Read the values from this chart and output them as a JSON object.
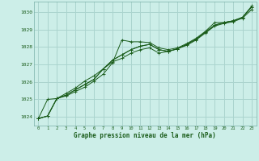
{
  "title": "Graphe pression niveau de la mer (hPa)",
  "background_color": "#cceee8",
  "grid_color": "#aad4ce",
  "line_color": "#1a5c1a",
  "marker_color": "#1a5c1a",
  "xlim": [
    -0.5,
    23.5
  ],
  "ylim": [
    1023.5,
    1030.6
  ],
  "yticks": [
    1024,
    1025,
    1026,
    1027,
    1028,
    1029,
    1030
  ],
  "xticks": [
    0,
    1,
    2,
    3,
    4,
    5,
    6,
    7,
    8,
    9,
    10,
    11,
    12,
    13,
    14,
    15,
    16,
    17,
    18,
    19,
    20,
    21,
    22,
    23
  ],
  "series": [
    {
      "x": [
        0,
        1,
        2,
        3,
        4,
        5,
        6,
        7,
        8,
        9,
        10,
        11,
        12,
        13,
        14,
        15,
        16,
        17,
        18,
        19,
        20,
        21,
        22,
        23
      ],
      "y": [
        1023.9,
        1025.0,
        1025.05,
        1025.2,
        1025.45,
        1025.7,
        1026.05,
        1026.45,
        1027.1,
        1028.4,
        1028.3,
        1028.3,
        1028.25,
        1027.95,
        1027.85,
        1027.95,
        1028.2,
        1028.5,
        1028.9,
        1029.4,
        1029.4,
        1029.5,
        1029.7,
        1030.35
      ]
    },
    {
      "x": [
        0,
        1,
        2,
        3,
        4,
        5,
        6,
        7,
        8,
        9,
        10,
        11,
        12,
        13,
        14,
        15,
        16,
        17,
        18,
        19,
        20,
        21,
        22,
        23
      ],
      "y": [
        1023.9,
        1024.05,
        1025.05,
        1025.25,
        1025.55,
        1025.85,
        1026.15,
        1026.75,
        1027.25,
        1027.55,
        1027.85,
        1028.05,
        1028.15,
        1027.85,
        1027.75,
        1027.9,
        1028.15,
        1028.45,
        1028.85,
        1029.25,
        1029.4,
        1029.5,
        1029.7,
        1030.3
      ]
    },
    {
      "x": [
        0,
        1,
        2,
        3,
        4,
        5,
        6,
        7,
        8,
        9,
        10,
        11,
        12,
        13,
        14,
        15,
        16,
        17,
        18,
        19,
        20,
        21,
        22,
        23
      ],
      "y": [
        1023.9,
        1024.05,
        1025.05,
        1025.25,
        1025.55,
        1025.85,
        1026.15,
        1026.75,
        1027.25,
        1027.55,
        1027.85,
        1028.05,
        1028.15,
        1027.85,
        1027.75,
        1027.9,
        1028.15,
        1028.45,
        1028.85,
        1029.25,
        1029.4,
        1029.5,
        1029.7,
        1030.3
      ]
    },
    {
      "x": [
        0,
        1,
        2,
        3,
        4,
        5,
        6,
        7,
        8,
        9,
        10,
        11,
        12,
        13,
        14,
        15,
        16,
        17,
        18,
        19,
        20,
        21,
        22,
        23
      ],
      "y": [
        1023.9,
        1024.05,
        1025.05,
        1025.35,
        1025.65,
        1026.05,
        1026.35,
        1026.75,
        1027.15,
        1027.35,
        1027.65,
        1027.85,
        1027.95,
        1027.65,
        1027.75,
        1027.9,
        1028.1,
        1028.4,
        1028.8,
        1029.2,
        1029.35,
        1029.45,
        1029.65,
        1030.15
      ]
    }
  ]
}
